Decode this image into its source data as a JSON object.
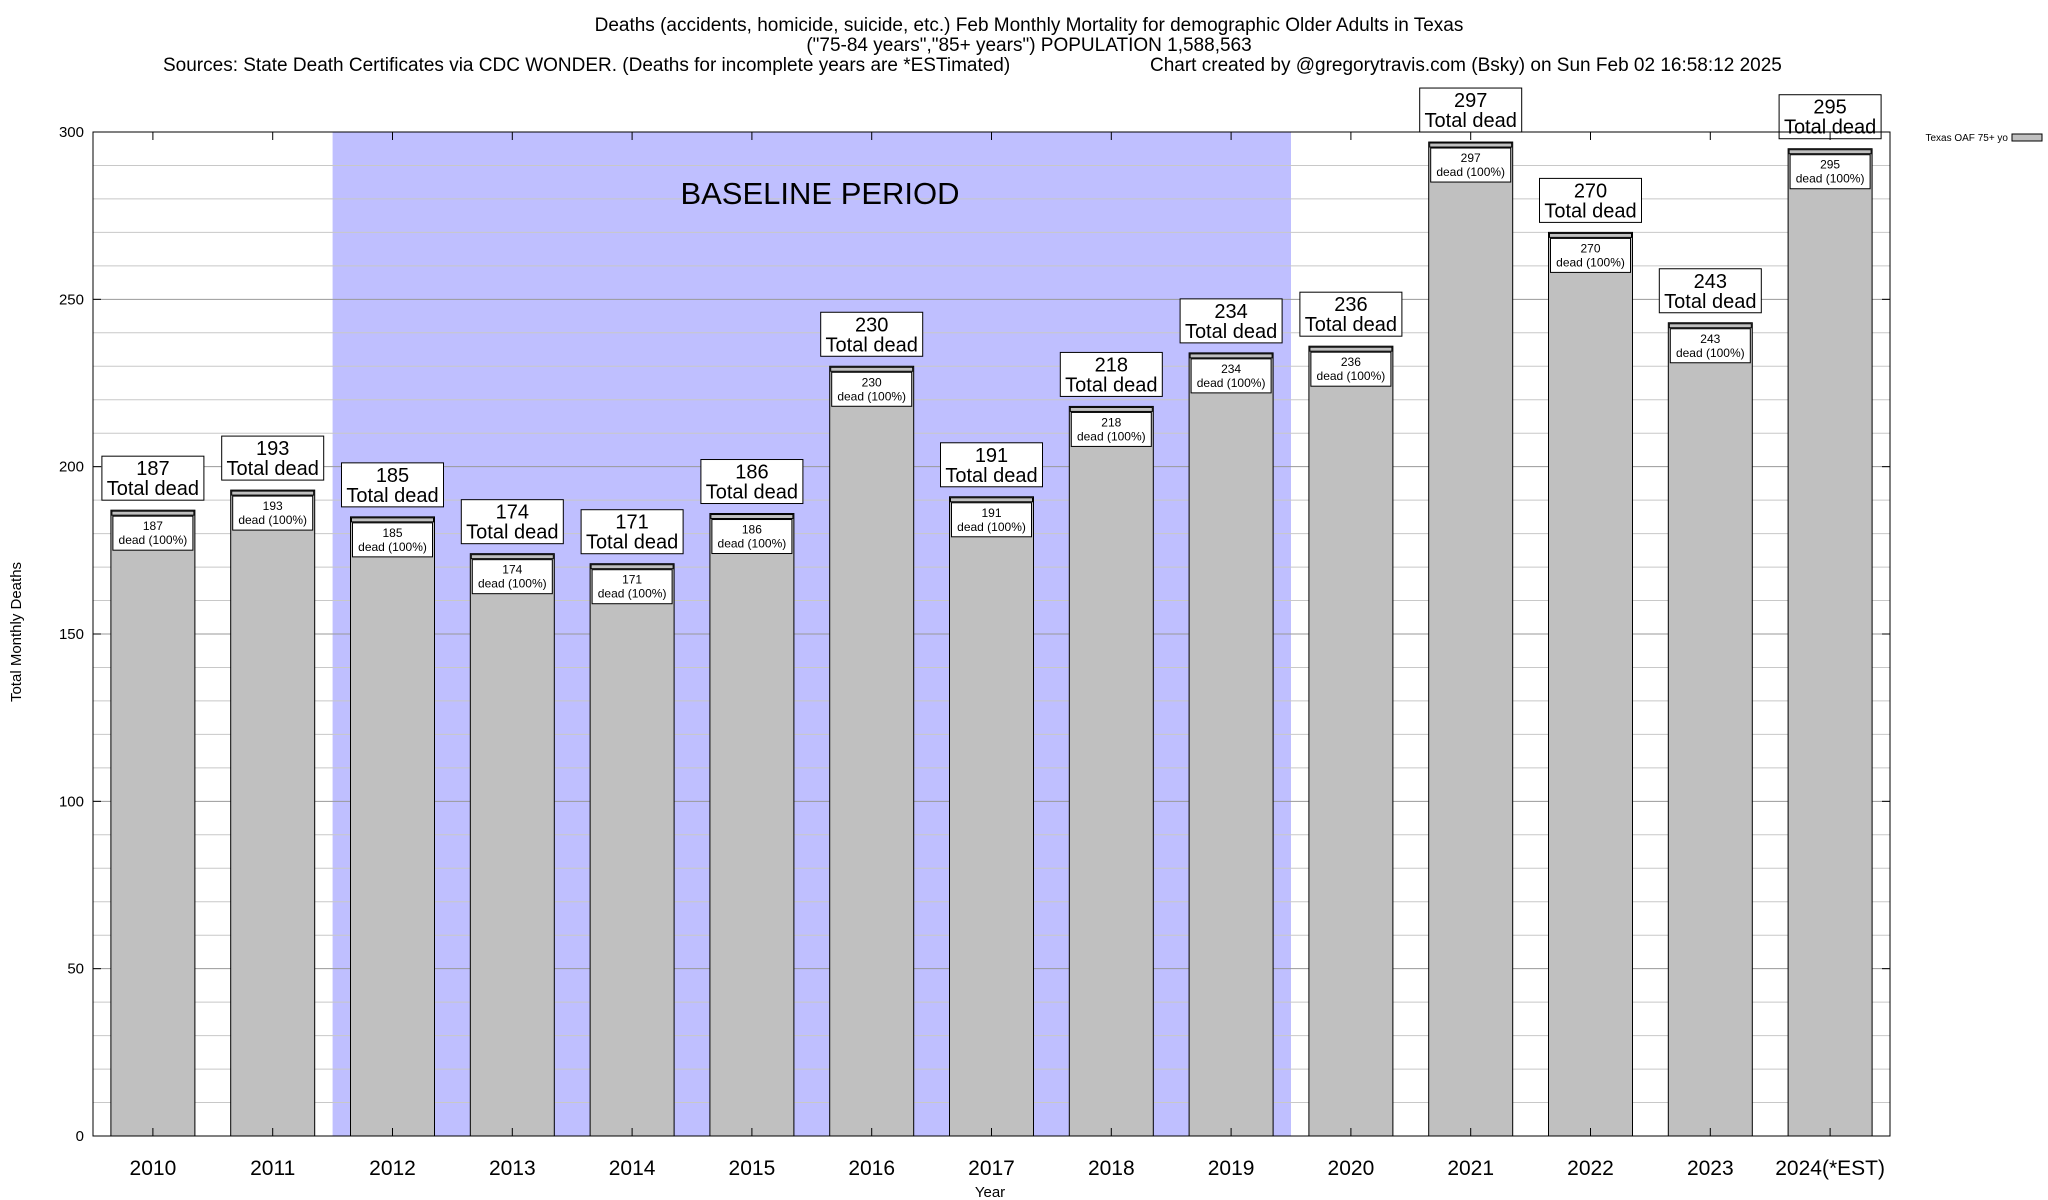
{
  "chart_data": {
    "type": "bar",
    "title_lines": [
      "Deaths (accidents, homicide, suicide, etc.) Feb Monthly Mortality for demographic Older Adults in Texas",
      "(\"75-84 years\",\"85+ years\") POPULATION 1,588,563"
    ],
    "source_text": "Sources: State Death Certificates via CDC WONDER. (Deaths for incomplete years are *ESTimated)",
    "credit_text": "Chart created by @gregorytravis.com (Bsky) on Sun Feb 02 16:58:12 2025",
    "xlabel": "Year",
    "ylabel": "Total Monthly Deaths",
    "ylim": [
      0,
      300
    ],
    "yticks": [
      0,
      50,
      100,
      150,
      200,
      250,
      300
    ],
    "grid": true,
    "legend": {
      "label": "Texas OAF 75+ yo",
      "position": "top-right"
    },
    "baseline_period": {
      "label": "BASELINE PERIOD",
      "from": "2012",
      "to": "2019",
      "color": "#bfbfff"
    },
    "bar_color": "#c0c0c0",
    "big_label_suffix": "Total dead",
    "small_label_suffix": "dead (100%)",
    "categories": [
      "2010",
      "2011",
      "2012",
      "2013",
      "2014",
      "2015",
      "2016",
      "2017",
      "2018",
      "2019",
      "2020",
      "2021",
      "2022",
      "2023",
      "2024(*EST)"
    ],
    "values": [
      187,
      193,
      185,
      174,
      171,
      186,
      230,
      191,
      218,
      234,
      236,
      297,
      270,
      243,
      295
    ]
  }
}
